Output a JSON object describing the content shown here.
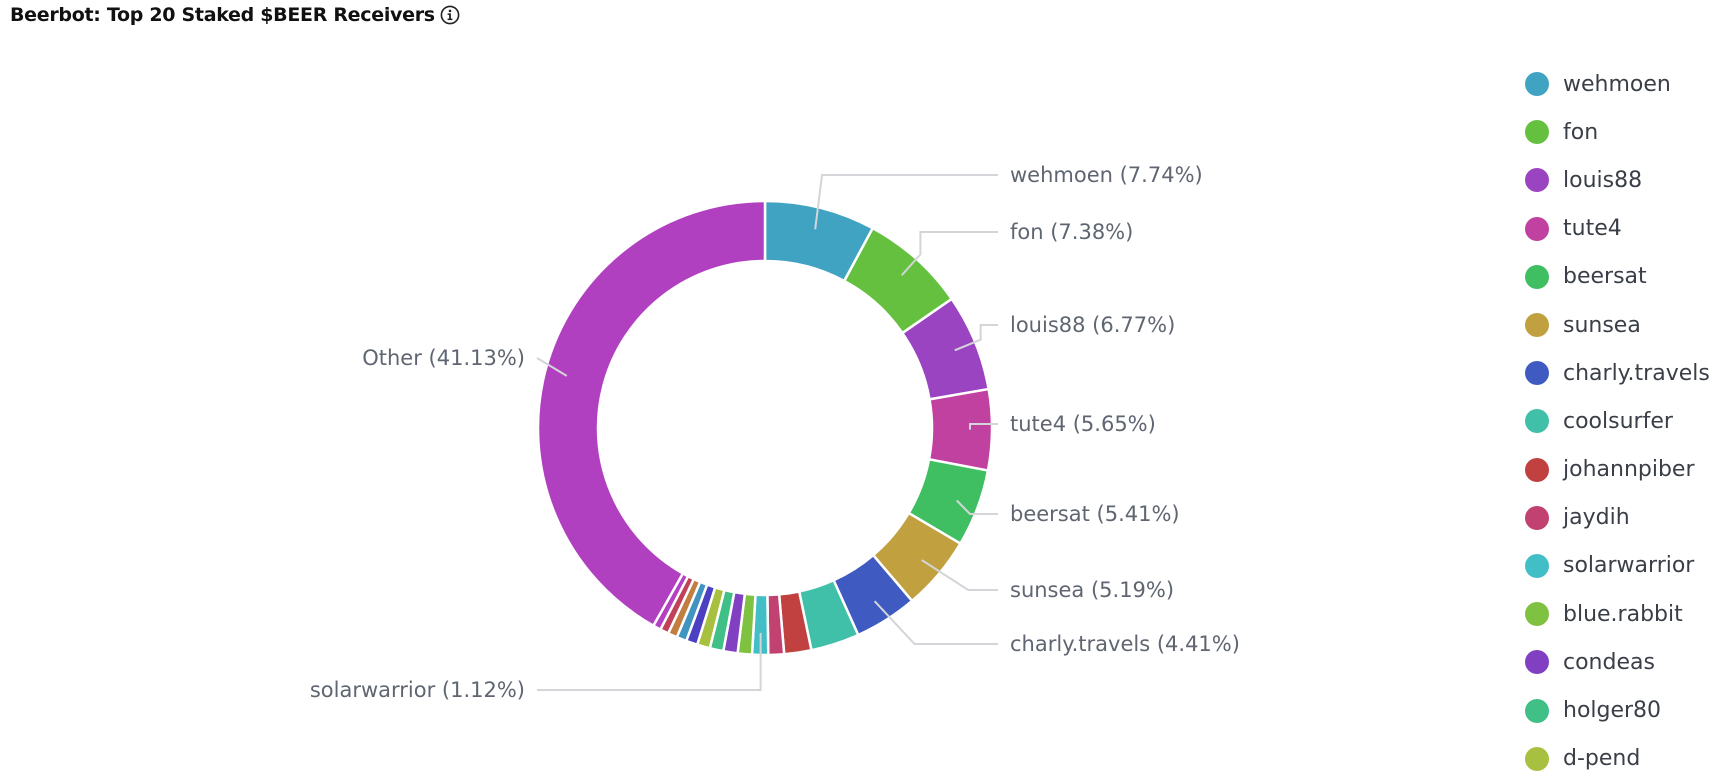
{
  "title": "Beerbot: Top 20 Staked $BEER Receivers",
  "info_icon": "info-icon",
  "chart_data": {
    "type": "pie",
    "donut": true,
    "title": "Beerbot: Top 20 Staked $BEER Receivers",
    "legend_position": "right",
    "slices": [
      {
        "name": "wehmoen",
        "value": 7.74,
        "color": "#41a3c2",
        "label": "wehmoen (7.74%)"
      },
      {
        "name": "fon",
        "value": 7.38,
        "color": "#66c040",
        "label": "fon (7.38%)"
      },
      {
        "name": "louis88",
        "value": 6.77,
        "color": "#9a44c2",
        "label": "louis88 (6.77%)"
      },
      {
        "name": "tute4",
        "value": 5.65,
        "color": "#c141a0",
        "label": "tute4 (5.65%)"
      },
      {
        "name": "beersat",
        "value": 5.41,
        "color": "#3fbf62",
        "label": "beersat (5.41%)"
      },
      {
        "name": "sunsea",
        "value": 5.19,
        "color": "#c1a13f",
        "label": "sunsea (5.19%)"
      },
      {
        "name": "charly.travels",
        "value": 4.41,
        "color": "#3f5bc1",
        "label": "charly.travels (4.41%)"
      },
      {
        "name": "coolsurfer",
        "value": 3.4,
        "color": "#40c0a8",
        "label": ""
      },
      {
        "name": "johannpiber",
        "value": 1.9,
        "color": "#c14141",
        "label": ""
      },
      {
        "name": "jaydih",
        "value": 1.1,
        "color": "#c14170",
        "label": ""
      },
      {
        "name": "solarwarrior",
        "value": 1.12,
        "color": "#42bec6",
        "label": "solarwarrior (1.12%)"
      },
      {
        "name": "blue.rabbit",
        "value": 1.0,
        "color": "#7fc140",
        "label": ""
      },
      {
        "name": "condeas",
        "value": 1.0,
        "color": "#8040c1",
        "label": ""
      },
      {
        "name": "holger80",
        "value": 0.95,
        "color": "#40c086",
        "label": ""
      },
      {
        "name": "d-pend",
        "value": 0.9,
        "color": "#a8c040",
        "label": ""
      },
      {
        "name": "",
        "value": 0.8,
        "color": "#4b40c1",
        "label": ""
      },
      {
        "name": "",
        "value": 0.7,
        "color": "#4094c1",
        "label": ""
      },
      {
        "name": "",
        "value": 0.65,
        "color": "#c17e40",
        "label": ""
      },
      {
        "name": "",
        "value": 0.6,
        "color": "#c14158",
        "label": ""
      },
      {
        "name": "",
        "value": 0.55,
        "color": "#b441c1",
        "label": ""
      },
      {
        "name": "Other",
        "value": 41.13,
        "color": "#b140c1",
        "label": "Other (41.13%)"
      }
    ]
  },
  "legend": [
    {
      "label": "wehmoen",
      "color": "#41a3c2"
    },
    {
      "label": "fon",
      "color": "#66c040"
    },
    {
      "label": "louis88",
      "color": "#9a44c2"
    },
    {
      "label": "tute4",
      "color": "#c141a0"
    },
    {
      "label": "beersat",
      "color": "#3fbf62"
    },
    {
      "label": "sunsea",
      "color": "#c1a13f"
    },
    {
      "label": "charly.travels",
      "color": "#3f5bc1"
    },
    {
      "label": "coolsurfer",
      "color": "#40c0a8"
    },
    {
      "label": "johannpiber",
      "color": "#c14141"
    },
    {
      "label": "jaydih",
      "color": "#c14170"
    },
    {
      "label": "solarwarrior",
      "color": "#42bec6"
    },
    {
      "label": "blue.rabbit",
      "color": "#7fc140"
    },
    {
      "label": "condeas",
      "color": "#8040c1"
    },
    {
      "label": "holger80",
      "color": "#40c086"
    },
    {
      "label": "d-pend",
      "color": "#a8c040"
    }
  ]
}
